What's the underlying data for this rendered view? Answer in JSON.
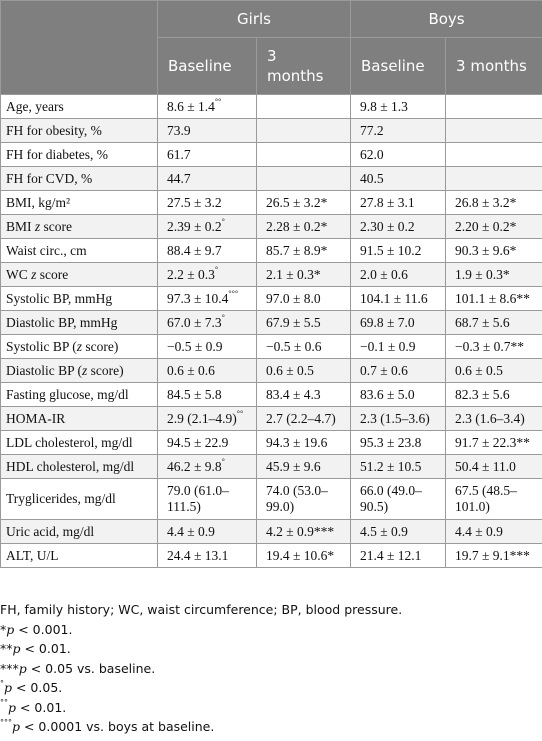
{
  "header": {
    "group_girls": "Girls",
    "group_boys": "Boys",
    "col_baseline": "Baseline",
    "col_3months_split": "3\nmonths",
    "col_3months": "3 months"
  },
  "rows": [
    {
      "label": "Age, years",
      "cells": [
        "8.6 ± 1.4°°",
        "",
        "9.8 ± 1.3",
        ""
      ]
    },
    {
      "label": "FH for obesity, %",
      "cells": [
        "73.9",
        "",
        "77.2",
        ""
      ]
    },
    {
      "label": "FH for diabetes, %",
      "cells": [
        "61.7",
        "",
        "62.0",
        ""
      ]
    },
    {
      "label": "FH for CVD, %",
      "cells": [
        "44.7",
        "",
        "40.5",
        ""
      ]
    },
    {
      "label": "BMI, kg/m²",
      "cells": [
        "27.5 ± 3.2",
        "26.5 ± 3.2*",
        "27.8 ± 3.1",
        "26.8 ± 3.2*"
      ]
    },
    {
      "label": "BMI z score",
      "cells": [
        "2.39 ± 0.2°",
        "2.28 ± 0.2*",
        "2.30 ± 0.2",
        "2.20 ± 0.2*"
      ]
    },
    {
      "label": "Waist circ., cm",
      "cells": [
        "88.4 ± 9.7",
        "85.7 ± 8.9*",
        "91.5 ± 10.2",
        "90.3 ± 9.6*"
      ]
    },
    {
      "label": "WC z score",
      "cells": [
        "2.2 ± 0.3°",
        "2.1 ± 0.3*",
        "2.0 ± 0.6",
        "1.9 ± 0.3*"
      ]
    },
    {
      "label": "Systolic BP, mmHg",
      "cells": [
        "97.3 ± 10.4°°°",
        "97.0 ± 8.0",
        "104.1 ± 11.6",
        "101.1 ± 8.6**"
      ]
    },
    {
      "label": "Diastolic BP, mmHg",
      "cells": [
        "67.0 ± 7.3°",
        "67.9 ± 5.5",
        "69.8 ± 7.0",
        "68.7 ± 5.6"
      ]
    },
    {
      "label": "Systolic BP (z score)",
      "cells": [
        "−0.5 ± 0.9",
        "−0.5 ± 0.6",
        "−0.1 ± 0.9",
        "−0.3 ± 0.7**"
      ]
    },
    {
      "label": "Diastolic BP (z score)",
      "cells": [
        "0.6 ± 0.6",
        "0.6 ± 0.5",
        "0.7 ± 0.6",
        "0.6 ± 0.5"
      ]
    },
    {
      "label": "Fasting glucose, mg/dl",
      "cells": [
        "84.5 ± 5.8",
        "83.4 ± 4.3",
        "83.6 ± 5.0",
        "82.3 ± 5.6"
      ]
    },
    {
      "label": "HOMA-IR",
      "cells": [
        "2.9 (2.1–4.9)°°",
        "2.7 (2.2–4.7)",
        "2.3 (1.5–3.6)",
        "2.3 (1.6–3.4)"
      ]
    },
    {
      "label": "LDL cholesterol, mg/dl",
      "cells": [
        "94.5 ± 22.9",
        "94.3 ± 19.6",
        "95.3 ± 23.8",
        "91.7 ± 22.3**"
      ]
    },
    {
      "label": "HDL cholesterol, mg/dl",
      "cells": [
        "46.2 ± 9.8°",
        "45.9 ± 9.6",
        "51.2 ± 10.5",
        "50.4 ± 11.0"
      ]
    },
    {
      "label": "Tryglicerides, mg/dl",
      "cells": [
        "79.0 (61.0–\n111.5)",
        "74.0 (53.0–\n99.0)",
        "66.0 (49.0–\n90.5)",
        "67.5 (48.5–\n101.0)"
      ]
    },
    {
      "label": "Uric acid, mg/dl",
      "cells": [
        "4.4 ± 0.9",
        "4.2 ± 0.9***",
        "4.5 ± 0.9",
        "4.4 ± 0.9"
      ]
    },
    {
      "label": "ALT, U/L",
      "cells": [
        "24.4 ± 13.1",
        "19.4 ± 10.6*",
        "21.4 ± 12.1",
        "19.7 ± 9.1***"
      ]
    }
  ],
  "footnotes": [
    "FH, family history; WC, waist circumference; BP, blood pressure.",
    "*p < 0.001.",
    "**p < 0.01.",
    "***p < 0.05 vs. baseline.",
    "°p < 0.05.",
    "°°p < 0.01.",
    "°°°p < 0.0001 vs. boys at baseline."
  ]
}
